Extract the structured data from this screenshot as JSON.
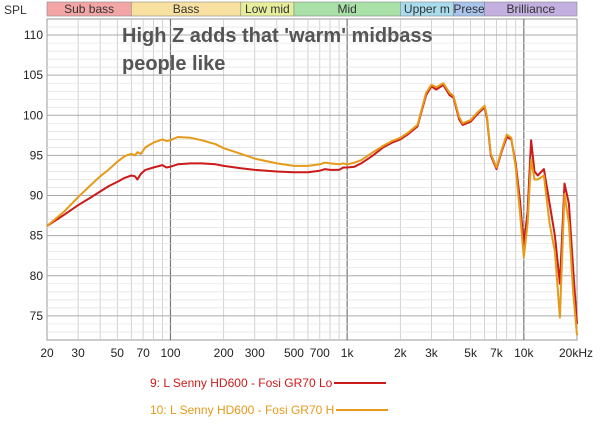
{
  "chart_data": {
    "type": "line",
    "ylabel": "SPL",
    "annotation": "High Z adds that 'warm' midbass people like",
    "annotation_lines": [
      "High Z adds that 'warm' midbass",
      "people like"
    ],
    "xscale": "log",
    "xlim": [
      20,
      20000
    ],
    "ylim": [
      72,
      112
    ],
    "yticks": [
      75,
      80,
      85,
      90,
      95,
      100,
      105,
      110
    ],
    "xticks": [
      {
        "value": 20,
        "label": "20"
      },
      {
        "value": 30,
        "label": "30"
      },
      {
        "value": 50,
        "label": "50"
      },
      {
        "value": 70,
        "label": "70"
      },
      {
        "value": 100,
        "label": "100"
      },
      {
        "value": 200,
        "label": "200"
      },
      {
        "value": 300,
        "label": "300"
      },
      {
        "value": 500,
        "label": "500"
      },
      {
        "value": 700,
        "label": "700"
      },
      {
        "value": 1000,
        "label": "1k"
      },
      {
        "value": 2000,
        "label": "2k"
      },
      {
        "value": 3000,
        "label": "3k"
      },
      {
        "value": 5000,
        "label": "5k"
      },
      {
        "value": 7000,
        "label": "7k"
      },
      {
        "value": 10000,
        "label": "10k"
      },
      {
        "value": 20000,
        "label": "20kHz"
      }
    ],
    "bands": [
      {
        "label": "Sub bass",
        "from": 20,
        "to": 60,
        "color": "#f4a6a6"
      },
      {
        "label": "Bass",
        "from": 60,
        "to": 250,
        "color": "#f8e0a0"
      },
      {
        "label": "Low mid",
        "from": 250,
        "to": 500,
        "color": "#e6ee9c"
      },
      {
        "label": "Mid",
        "from": 500,
        "to": 2000,
        "color": "#a8e0a8"
      },
      {
        "label": "Upper m",
        "from": 2000,
        "to": 4000,
        "color": "#a8dcec"
      },
      {
        "label": "Prese",
        "from": 4000,
        "to": 6000,
        "color": "#a8c4ec"
      },
      {
        "label": "Brilliance",
        "from": 6000,
        "to": 20000,
        "color": "#c4b0e0"
      }
    ],
    "grid": true,
    "legend_position": "bottom",
    "series": [
      {
        "name": "9: L Senny HD600 - Fosi GR70 Lo",
        "color": "#cc1a1a",
        "points": [
          [
            20,
            86.2
          ],
          [
            25,
            87.6
          ],
          [
            30,
            88.8
          ],
          [
            35,
            89.7
          ],
          [
            40,
            90.5
          ],
          [
            45,
            91.2
          ],
          [
            50,
            91.7
          ],
          [
            55,
            92.2
          ],
          [
            60,
            92.5
          ],
          [
            63,
            92.4
          ],
          [
            65,
            92.0
          ],
          [
            68,
            92.7
          ],
          [
            72,
            93.2
          ],
          [
            80,
            93.5
          ],
          [
            90,
            93.8
          ],
          [
            95,
            93.5
          ],
          [
            100,
            93.6
          ],
          [
            110,
            93.9
          ],
          [
            130,
            94.0
          ],
          [
            150,
            94.0
          ],
          [
            180,
            93.9
          ],
          [
            200,
            93.7
          ],
          [
            250,
            93.4
          ],
          [
            300,
            93.2
          ],
          [
            400,
            93.0
          ],
          [
            500,
            92.9
          ],
          [
            600,
            92.9
          ],
          [
            700,
            93.1
          ],
          [
            750,
            93.3
          ],
          [
            800,
            93.2
          ],
          [
            900,
            93.2
          ],
          [
            950,
            93.5
          ],
          [
            1000,
            93.5
          ],
          [
            1100,
            93.6
          ],
          [
            1200,
            94.0
          ],
          [
            1400,
            95.0
          ],
          [
            1600,
            96.0
          ],
          [
            1800,
            96.6
          ],
          [
            2000,
            97.0
          ],
          [
            2200,
            97.6
          ],
          [
            2500,
            98.6
          ],
          [
            2600,
            100.0
          ],
          [
            2800,
            102.5
          ],
          [
            3000,
            103.6
          ],
          [
            3200,
            103.2
          ],
          [
            3500,
            103.8
          ],
          [
            3800,
            102.5
          ],
          [
            4000,
            102.2
          ],
          [
            4300,
            99.5
          ],
          [
            4500,
            98.8
          ],
          [
            5000,
            99.2
          ],
          [
            5500,
            100.2
          ],
          [
            6000,
            101.0
          ],
          [
            6200,
            99.5
          ],
          [
            6500,
            95.0
          ],
          [
            7000,
            93.3
          ],
          [
            7500,
            95.5
          ],
          [
            8000,
            97.3
          ],
          [
            8500,
            97.0
          ],
          [
            9000,
            94.0
          ],
          [
            9500,
            89.5
          ],
          [
            10000,
            83.8
          ],
          [
            10500,
            88.0
          ],
          [
            11000,
            96.9
          ],
          [
            11500,
            93.0
          ],
          [
            12000,
            92.5
          ],
          [
            13000,
            93.3
          ],
          [
            14000,
            89.0
          ],
          [
            15000,
            85.0
          ],
          [
            16000,
            79.0
          ],
          [
            17000,
            91.5
          ],
          [
            18000,
            89.0
          ],
          [
            19000,
            81.0
          ],
          [
            20000,
            74.0
          ]
        ]
      },
      {
        "name": "10: L Senny HD600 - Fosi GR70 H",
        "color": "#e69a1a",
        "points": [
          [
            20,
            86.2
          ],
          [
            25,
            88.0
          ],
          [
            30,
            89.8
          ],
          [
            35,
            91.2
          ],
          [
            40,
            92.4
          ],
          [
            45,
            93.3
          ],
          [
            50,
            94.2
          ],
          [
            55,
            94.9
          ],
          [
            60,
            95.2
          ],
          [
            63,
            95.0
          ],
          [
            65,
            95.4
          ],
          [
            68,
            95.2
          ],
          [
            72,
            96.0
          ],
          [
            80,
            96.6
          ],
          [
            90,
            97.0
          ],
          [
            95,
            96.8
          ],
          [
            100,
            96.9
          ],
          [
            110,
            97.3
          ],
          [
            130,
            97.2
          ],
          [
            150,
            96.9
          ],
          [
            180,
            96.4
          ],
          [
            200,
            95.9
          ],
          [
            250,
            95.2
          ],
          [
            300,
            94.6
          ],
          [
            400,
            94.0
          ],
          [
            500,
            93.7
          ],
          [
            600,
            93.7
          ],
          [
            700,
            93.9
          ],
          [
            750,
            94.1
          ],
          [
            800,
            94.0
          ],
          [
            900,
            93.9
          ],
          [
            950,
            94.0
          ],
          [
            1000,
            93.9
          ],
          [
            1100,
            94.1
          ],
          [
            1200,
            94.4
          ],
          [
            1400,
            95.4
          ],
          [
            1600,
            96.2
          ],
          [
            1800,
            96.8
          ],
          [
            2000,
            97.2
          ],
          [
            2200,
            97.8
          ],
          [
            2500,
            98.8
          ],
          [
            2600,
            100.2
          ],
          [
            2800,
            102.8
          ],
          [
            3000,
            103.8
          ],
          [
            3200,
            103.5
          ],
          [
            3500,
            104.0
          ],
          [
            3800,
            102.8
          ],
          [
            4000,
            102.4
          ],
          [
            4300,
            99.8
          ],
          [
            4500,
            99.0
          ],
          [
            5000,
            99.4
          ],
          [
            5500,
            100.4
          ],
          [
            6000,
            101.2
          ],
          [
            6200,
            99.8
          ],
          [
            6500,
            95.2
          ],
          [
            7000,
            93.5
          ],
          [
            7500,
            95.7
          ],
          [
            8000,
            97.6
          ],
          [
            8500,
            97.2
          ],
          [
            9000,
            93.5
          ],
          [
            9500,
            88.0
          ],
          [
            10000,
            82.3
          ],
          [
            10500,
            86.5
          ],
          [
            11000,
            94.5
          ],
          [
            11500,
            92.0
          ],
          [
            12000,
            92.0
          ],
          [
            13000,
            92.5
          ],
          [
            14000,
            86.5
          ],
          [
            15000,
            83.0
          ],
          [
            16000,
            74.8
          ],
          [
            17000,
            90.2
          ],
          [
            18000,
            86.5
          ],
          [
            19000,
            78.0
          ],
          [
            20000,
            72.6
          ]
        ]
      }
    ]
  }
}
